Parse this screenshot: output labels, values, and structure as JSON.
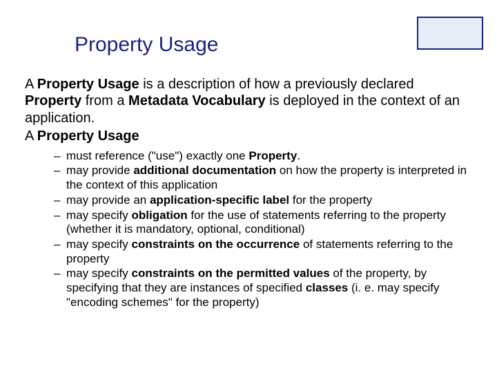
{
  "title": "Property Usage",
  "corner_box": {
    "border_color": "#1a237e",
    "fill_color": "#e8eef8"
  },
  "intro": {
    "p1_pre": "A ",
    "p1_b1": "Property Usage",
    "p1_mid1": " is a description of how a previously declared ",
    "p1_b2": "Property",
    "p1_mid2": " from a ",
    "p1_b3": "Metadata Vocabulary",
    "p1_post": " is deployed in the context of an application.",
    "p2_pre": "A ",
    "p2_b1": "Property Usage"
  },
  "bullets": {
    "b1_pre": "must reference (\"use\") exactly one ",
    "b1_bold": "Property",
    "b1_post": ".",
    "b2_pre": "may provide ",
    "b2_bold": "additional documentation",
    "b2_post": " on how the property is interpreted in the context of this application",
    "b3_pre": "may provide an ",
    "b3_bold": "application-specific label",
    "b3_post": " for the property",
    "b4_pre": "may specify ",
    "b4_bold": "obligation",
    "b4_post": " for the use of statements referring to the property (whether it is mandatory, optional, conditional)",
    "b5_pre": "may specify ",
    "b5_bold": "constraints on the occurrence",
    "b5_post": " of statements referring to the property",
    "b6_pre": "may specify ",
    "b6_bold1": "constraints on the permitted values",
    "b6_mid": " of the property, by specifying that they are instances of specified ",
    "b6_bold2": "classes",
    "b6_post": " (i. e. may specify \"encoding schemes\" for the property)"
  }
}
